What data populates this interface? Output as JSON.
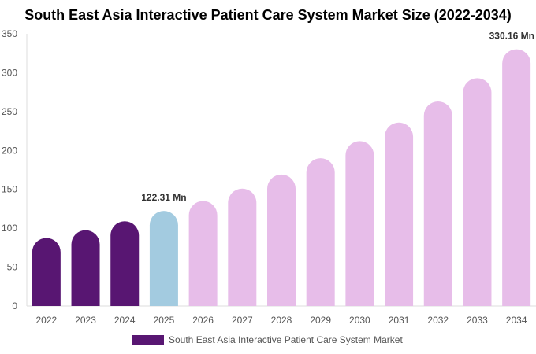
{
  "chart_data": {
    "type": "bar",
    "title": "South East Asia Interactive Patient Care System Market Size (2022-2034)",
    "xlabel": "",
    "ylabel": "",
    "categories": [
      "2022",
      "2023",
      "2024",
      "2025",
      "2026",
      "2027",
      "2028",
      "2029",
      "2030",
      "2031",
      "2032",
      "2033",
      "2034"
    ],
    "series": [
      {
        "name": "South East Asia Interactive Patient Care System Market",
        "values": [
          87.5,
          97.5,
          109,
          122.31,
          135,
          151,
          169,
          190,
          212,
          236,
          263,
          293,
          330.16
        ]
      }
    ],
    "ylim": [
      0,
      350
    ],
    "yticks": [
      0,
      50,
      100,
      150,
      200,
      250,
      300,
      350
    ],
    "grid": false,
    "legend_position": "bottom",
    "data_labels": [
      {
        "category": "2025",
        "text": "122.31 Mn"
      },
      {
        "category": "2034",
        "text": "330.16 Mn"
      }
    ],
    "colors": {
      "historical": "#581672",
      "current": "#a3cbe0",
      "forecast": "#e7bde9",
      "axis": "#dddddd",
      "tick_text": "#555555",
      "label_text": "#333333"
    }
  }
}
